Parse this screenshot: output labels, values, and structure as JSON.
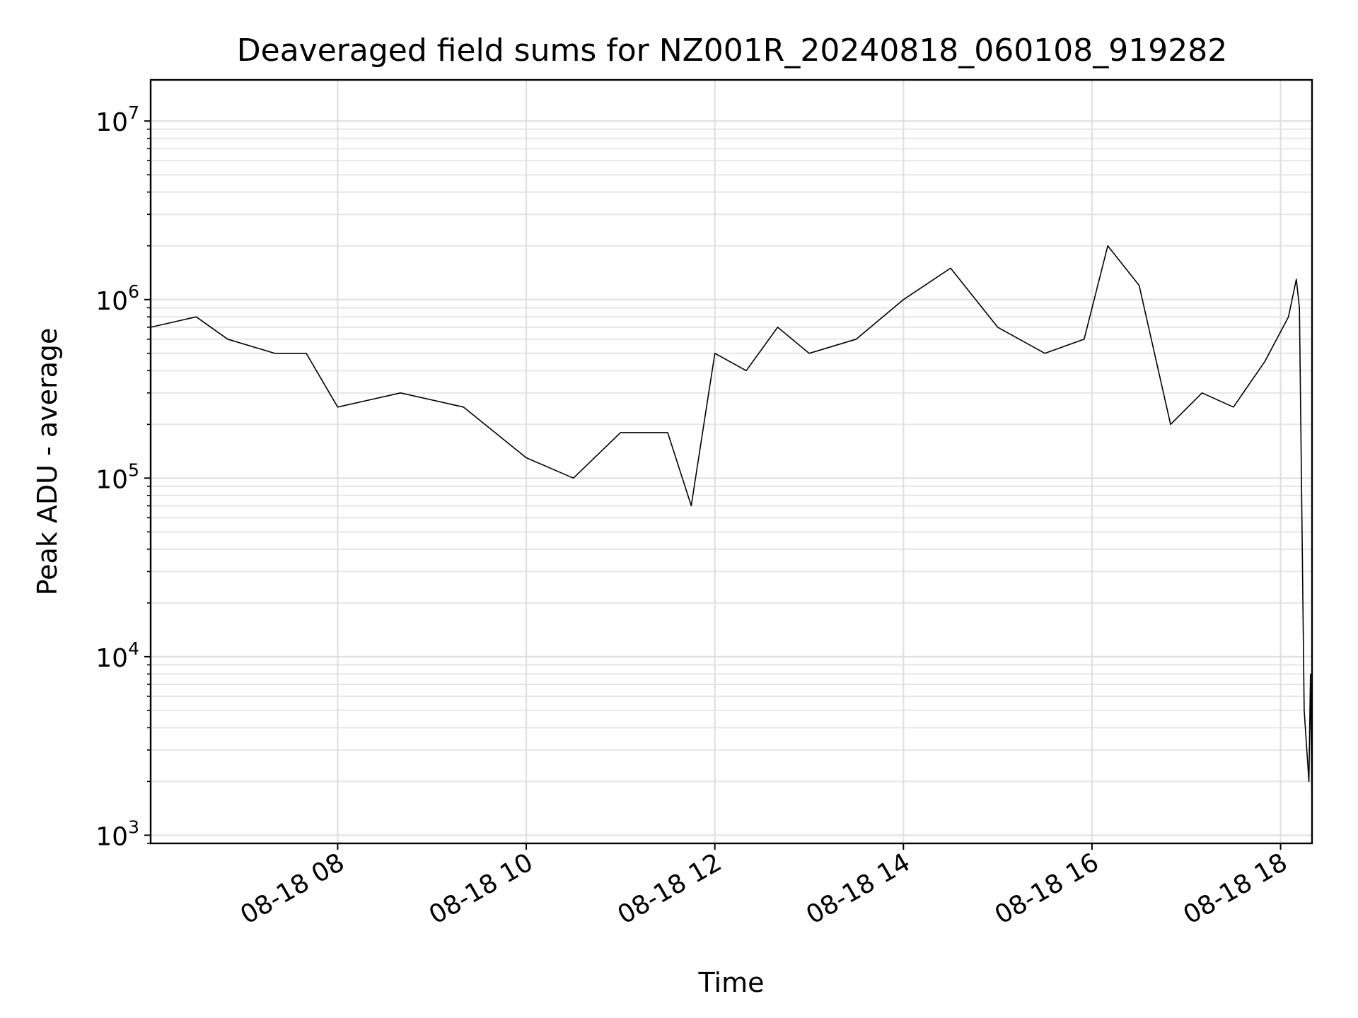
{
  "chart_data": {
    "type": "line",
    "title": "Deaveraged field sums for NZ001R_20240818_060108_919282",
    "xlabel": "Time",
    "ylabel": "Peak ADU - average",
    "yscale": "log",
    "xlim": [
      "2024-08-18 06:01",
      "2024-08-18 18:20"
    ],
    "ylim": [
      900,
      17000000
    ],
    "grid": {
      "major": true,
      "minor_y": true
    },
    "x_ticks": [
      {
        "value": "2024-08-18 08:00",
        "label": "08-18 08"
      },
      {
        "value": "2024-08-18 10:00",
        "label": "08-18 10"
      },
      {
        "value": "2024-08-18 12:00",
        "label": "08-18 12"
      },
      {
        "value": "2024-08-18 14:00",
        "label": "08-18 14"
      },
      {
        "value": "2024-08-18 16:00",
        "label": "08-18 16"
      },
      {
        "value": "2024-08-18 18:00",
        "label": "08-18 18"
      }
    ],
    "y_ticks": [
      {
        "value": 1000,
        "base": "10",
        "exp": "3"
      },
      {
        "value": 10000,
        "base": "10",
        "exp": "4"
      },
      {
        "value": 100000,
        "base": "10",
        "exp": "5"
      },
      {
        "value": 1000000,
        "base": "10",
        "exp": "6"
      },
      {
        "value": 10000000,
        "base": "10",
        "exp": "7"
      }
    ],
    "series": [
      {
        "color": "#000000",
        "points": [
          {
            "x": "2024-08-18 06:01",
            "y": 700000
          },
          {
            "x": "2024-08-18 06:30",
            "y": 800000
          },
          {
            "x": "2024-08-18 06:50",
            "y": 600000
          },
          {
            "x": "2024-08-18 07:20",
            "y": 500000
          },
          {
            "x": "2024-08-18 07:40",
            "y": 500000
          },
          {
            "x": "2024-08-18 08:00",
            "y": 250000
          },
          {
            "x": "2024-08-18 08:40",
            "y": 300000
          },
          {
            "x": "2024-08-18 09:20",
            "y": 250000
          },
          {
            "x": "2024-08-18 10:00",
            "y": 130000
          },
          {
            "x": "2024-08-18 10:30",
            "y": 100000
          },
          {
            "x": "2024-08-18 11:00",
            "y": 180000
          },
          {
            "x": "2024-08-18 11:30",
            "y": 180000
          },
          {
            "x": "2024-08-18 11:45",
            "y": 70000
          },
          {
            "x": "2024-08-18 12:00",
            "y": 500000
          },
          {
            "x": "2024-08-18 12:20",
            "y": 400000
          },
          {
            "x": "2024-08-18 12:40",
            "y": 700000
          },
          {
            "x": "2024-08-18 13:00",
            "y": 500000
          },
          {
            "x": "2024-08-18 13:30",
            "y": 600000
          },
          {
            "x": "2024-08-18 14:00",
            "y": 1000000
          },
          {
            "x": "2024-08-18 14:30",
            "y": 1500000
          },
          {
            "x": "2024-08-18 15:00",
            "y": 700000
          },
          {
            "x": "2024-08-18 15:30",
            "y": 500000
          },
          {
            "x": "2024-08-18 15:55",
            "y": 600000
          },
          {
            "x": "2024-08-18 16:10",
            "y": 2000000
          },
          {
            "x": "2024-08-18 16:30",
            "y": 1200000
          },
          {
            "x": "2024-08-18 16:50",
            "y": 200000
          },
          {
            "x": "2024-08-18 17:10",
            "y": 300000
          },
          {
            "x": "2024-08-18 17:30",
            "y": 250000
          },
          {
            "x": "2024-08-18 17:50",
            "y": 450000
          },
          {
            "x": "2024-08-18 18:05",
            "y": 800000
          },
          {
            "x": "2024-08-18 18:10",
            "y": 1300000
          },
          {
            "x": "2024-08-18 18:12",
            "y": 900000
          },
          {
            "x": "2024-08-18 18:15",
            "y": 5000
          },
          {
            "x": "2024-08-18 18:18",
            "y": 2000
          },
          {
            "x": "2024-08-18 18:19",
            "y": 8000
          },
          {
            "x": "2024-08-18 18:20",
            "y": 1400
          }
        ]
      }
    ]
  }
}
